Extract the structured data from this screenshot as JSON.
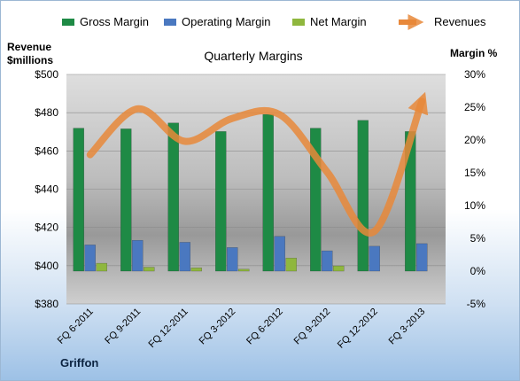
{
  "chart_data": {
    "type": "bar",
    "title": "Quarterly Margins",
    "company": "Griffon",
    "left_axis_title": [
      "Revenue",
      "$millions"
    ],
    "right_axis_title": "Margin %",
    "left_axis": {
      "min": 380,
      "max": 500,
      "step": 20,
      "tick_labels": [
        "$380",
        "$400",
        "$420",
        "$440",
        "$460",
        "$480",
        "$500"
      ]
    },
    "right_axis": {
      "min": -5,
      "max": 30,
      "step": 5,
      "tick_labels": [
        "-5%",
        "0%",
        "5%",
        "10%",
        "15%",
        "20%",
        "25%",
        "30%"
      ]
    },
    "categories": [
      "FQ 6-2011",
      "FQ 9-2011",
      "FQ 12-2011",
      "FQ 3-2012",
      "FQ 6-2012",
      "FQ 9-2012",
      "FQ 12-2012",
      "FQ 3-2013"
    ],
    "legend_position": "top",
    "series": [
      {
        "name": "Gross Margin",
        "type": "bar",
        "axis": "right",
        "color": "#1e8a45",
        "values": [
          21.8,
          21.7,
          22.6,
          21.3,
          23.9,
          21.8,
          23.0,
          21.3
        ]
      },
      {
        "name": "Operating Margin",
        "type": "bar",
        "axis": "right",
        "color": "#4a78c0",
        "values": [
          4.0,
          4.7,
          4.4,
          3.6,
          5.3,
          3.1,
          3.8,
          4.2
        ]
      },
      {
        "name": "Net Margin",
        "type": "bar",
        "axis": "right",
        "color": "#8fb73e",
        "values": [
          1.2,
          0.6,
          0.5,
          0.3,
          2.0,
          0.8,
          0.0,
          0.0
        ]
      },
      {
        "name": "Revenues",
        "type": "line",
        "axis": "left",
        "color": "#e8883a",
        "values": [
          458,
          482,
          465,
          477,
          479,
          449,
          418,
          486
        ]
      }
    ]
  }
}
